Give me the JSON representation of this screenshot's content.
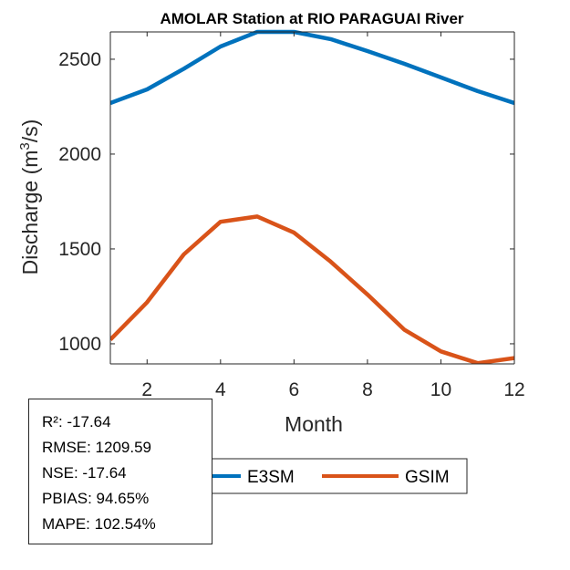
{
  "chart_data": {
    "type": "line",
    "title": "AMOLAR  Station at  RIO PARAGUAI  River",
    "xlabel": "Month",
    "ylabel": "Discharge (m³/s)",
    "ylabel_parts": {
      "main": "Discharge (m",
      "sup": "3",
      "end": "/s)"
    },
    "xlim": [
      1,
      12
    ],
    "ylim": [
      894,
      2644
    ],
    "xticks": [
      2,
      4,
      6,
      8,
      10,
      12
    ],
    "xtick_labels": [
      "2",
      "4",
      "6",
      "8",
      "10",
      "12"
    ],
    "yticks": [
      1000,
      1500,
      2000,
      2500
    ],
    "ytick_labels": [
      "1000",
      "1500",
      "2000",
      "2500"
    ],
    "grid": false,
    "legend_position": "bottom-outside",
    "x": [
      1,
      2,
      3,
      4,
      5,
      6,
      7,
      8,
      9,
      10,
      11,
      12
    ],
    "series": [
      {
        "name": "E3SM",
        "color": "#0072BD",
        "values": [
          2269,
          2341,
          2450,
          2567,
          2644,
          2644,
          2606,
          2543,
          2476,
          2404,
          2332,
          2269
        ]
      },
      {
        "name": "GSIM",
        "color": "#D95319",
        "values": [
          1022,
          1219,
          1471,
          1643,
          1671,
          1586,
          1433,
          1260,
          1075,
          960,
          898,
          925
        ]
      }
    ]
  },
  "stats": {
    "lines": [
      "R²: -17.64",
      "RMSE: 1209.59",
      "NSE: -17.64",
      "PBIAS: 94.65%",
      "MAPE: 102.54%"
    ]
  }
}
